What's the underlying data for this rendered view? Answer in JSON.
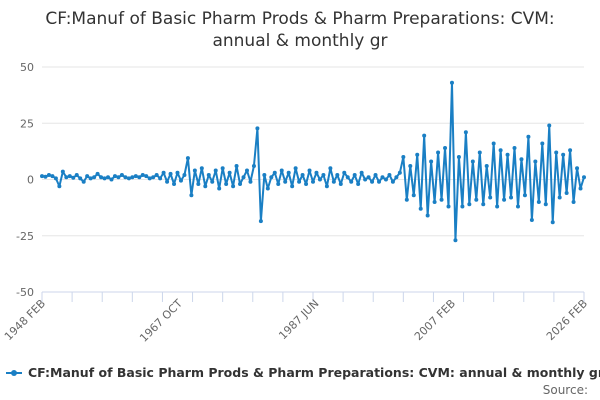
{
  "chart_data": {
    "type": "line",
    "title": "CF:Manuf of Basic Pharm Prods & Pharm Preparations: CVM: annual & monthly gr",
    "title_lines": [
      "CF:Manuf of Basic Pharm Prods & Pharm Preparations: CVM:",
      "annual & monthly gr"
    ],
    "xlabel": "",
    "ylabel": "",
    "ylim": [
      -50,
      50
    ],
    "yticks": [
      50,
      25,
      0,
      -25,
      -50
    ],
    "xlim": [
      1948.1,
      2026.1
    ],
    "xtick_labels": [
      "1948 FEB",
      "1967 OCT",
      "1987 JUN",
      "2007 FEB",
      "2026 FEB"
    ],
    "xtick_positions": [
      1948.1,
      1967.8,
      1987.45,
      2007.1,
      2026.1
    ],
    "grid": true,
    "legend_position": "bottom",
    "series": [
      {
        "name": "CF:Manuf of Basic Pharm Prods & Pharm Preparations: CVM: annual & monthly gr",
        "color": "#1a7fc4",
        "x_start": 1948.1,
        "x_step": 0.5,
        "values": [
          1.5,
          1.2,
          2,
          1.5,
          0.5,
          -3,
          3.5,
          1,
          1.5,
          0.8,
          2,
          0.5,
          -1,
          1.5,
          0.5,
          1,
          2.5,
          1,
          0.5,
          1,
          0,
          1.5,
          1,
          2,
          1,
          0.5,
          1,
          1.5,
          1,
          2,
          1.5,
          0.5,
          1,
          2,
          0.5,
          3,
          -1,
          2.5,
          -2,
          3,
          -0.5,
          2,
          9.5,
          -7,
          4,
          -2,
          5,
          -3,
          2,
          -1,
          4,
          -4,
          5,
          -2,
          3,
          -3,
          6,
          -2,
          1,
          4,
          -1,
          6,
          22.7,
          -18.5,
          2,
          -4,
          1,
          3,
          -2,
          4,
          -1,
          3,
          -3,
          5,
          -1,
          2,
          -2,
          4,
          -1,
          3,
          0,
          2,
          -3,
          5,
          -1,
          2,
          -2,
          3,
          1,
          -1,
          2,
          -2,
          3,
          0,
          1,
          -1,
          2,
          -1,
          1,
          0,
          2,
          -1,
          1,
          3,
          10,
          -9,
          6,
          -7,
          11,
          -13,
          19.5,
          -16,
          8,
          -10,
          12,
          -9,
          14,
          -12,
          43,
          -27,
          10,
          -12,
          21,
          -11,
          8,
          -9,
          12,
          -11,
          6,
          -8,
          16,
          -12,
          13,
          -9,
          11,
          -8,
          14,
          -12,
          9,
          -7,
          19,
          -18,
          8,
          -10,
          16,
          -11,
          24,
          -19,
          12,
          -8,
          11,
          -6,
          13,
          -10,
          5,
          -4,
          1
        ]
      }
    ],
    "source_label": "Source:"
  }
}
